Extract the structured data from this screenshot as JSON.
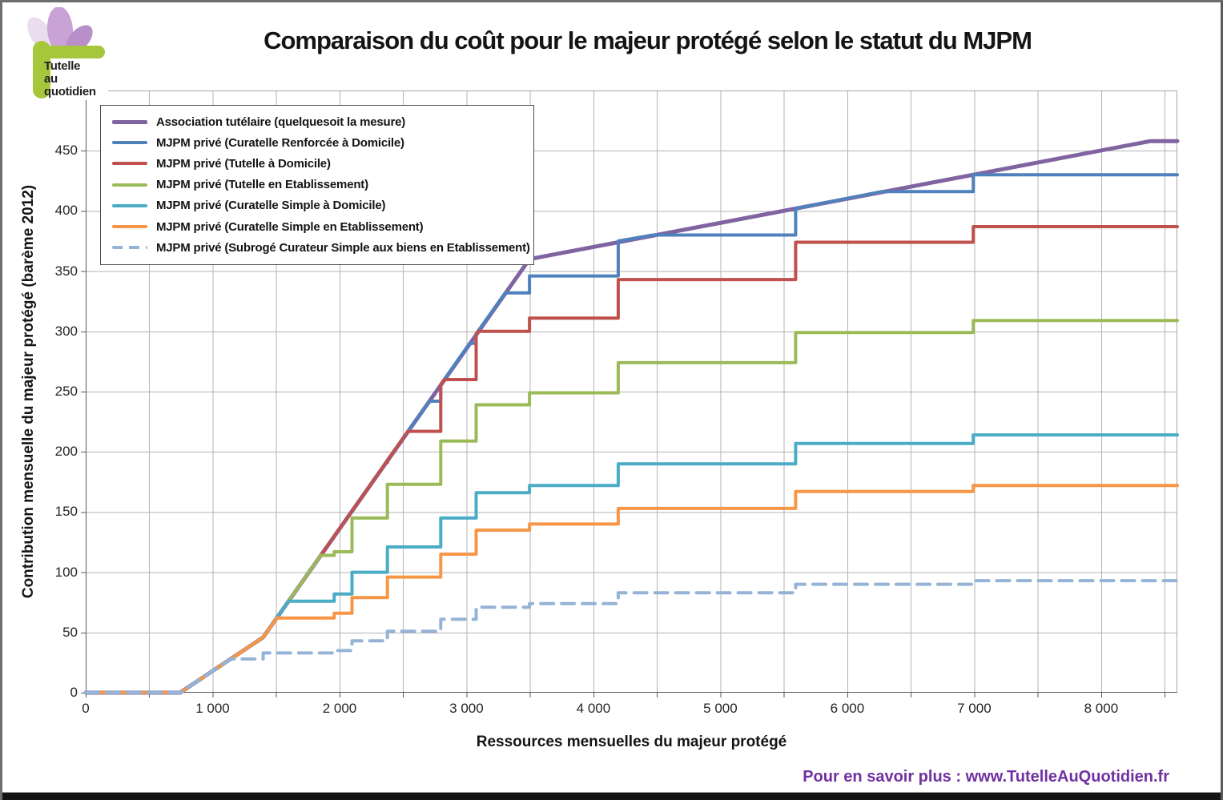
{
  "header": {
    "title": "Comparaison du coût pour le majeur protégé selon le statut du MJPM"
  },
  "logo": {
    "lines": [
      "Tutelle",
      "au",
      "quotidien"
    ],
    "green": "#A6C63B",
    "petal_light": "#EBDDF0",
    "petal_mid": "#C9A3D6",
    "petal_dark": "#B98FC9"
  },
  "footer": {
    "text": "Pour en savoir plus : www.TutelleAuQuotidien.fr",
    "color": "#7030A0"
  },
  "chart_data": {
    "type": "line",
    "title": "Comparaison du coût pour le majeur protégé selon le statut du MJPM",
    "xlabel": "Ressources mensuelles du majeur protégé",
    "ylabel": "Contribution mensuelle du majeur protégé (barème 2012)",
    "xlim": [
      0,
      8600
    ],
    "ylim": [
      0,
      500
    ],
    "x_grid_step": 500,
    "y_grid_step": 50,
    "grid_color": "#B3B3B3",
    "axis_color": "#595959",
    "legend_position": "top-left",
    "x_ticks": [
      {
        "value": 0,
        "label": "0"
      },
      {
        "value": 1000,
        "label": "1 000"
      },
      {
        "value": 2000,
        "label": "2 000"
      },
      {
        "value": 3000,
        "label": "3 000"
      },
      {
        "value": 4000,
        "label": "4 000"
      },
      {
        "value": 5000,
        "label": "5 000"
      },
      {
        "value": 6000,
        "label": "6 000"
      },
      {
        "value": 7000,
        "label": "7 000"
      },
      {
        "value": 8000,
        "label": "8 000"
      }
    ],
    "y_ticks": [
      {
        "value": 0,
        "label": "0"
      },
      {
        "value": 50,
        "label": "50"
      },
      {
        "value": 100,
        "label": "100"
      },
      {
        "value": 150,
        "label": "150"
      },
      {
        "value": 200,
        "label": "200"
      },
      {
        "value": 250,
        "label": "250"
      },
      {
        "value": 300,
        "label": "300"
      },
      {
        "value": 350,
        "label": "350"
      },
      {
        "value": 400,
        "label": "400"
      },
      {
        "value": 450,
        "label": "450"
      }
    ],
    "step_boundaries": [
      743,
      1398,
      1958,
      2098,
      2377,
      2797,
      3076,
      3496,
      4195,
      5593,
      6992,
      8390
    ],
    "series": [
      {
        "name": "Association tutélaire (quelquesoit la mesure)",
        "color": "#8064A2",
        "width": 5,
        "dash": null,
        "points": [
          [
            0,
            0
          ],
          [
            743,
            0
          ],
          [
            1398,
            46
          ],
          [
            3496,
            360
          ],
          [
            8388,
            458
          ],
          [
            8600,
            458
          ]
        ]
      },
      {
        "name": "MJPM privé (Curatelle Renforcée à Domicile)",
        "color": "#4F81BD",
        "width": 4,
        "dash": null,
        "points": [
          [
            0,
            0
          ],
          [
            743,
            0
          ],
          [
            1398,
            46
          ],
          [
            2706,
            242
          ],
          [
            2797,
            242
          ],
          [
            2797,
            256
          ],
          [
            3025,
            290
          ],
          [
            3076,
            290
          ],
          [
            3076,
            298
          ],
          [
            3305,
            332
          ],
          [
            3496,
            332
          ],
          [
            3496,
            346
          ],
          [
            4195,
            346
          ],
          [
            4195,
            375
          ],
          [
            4468,
            380
          ],
          [
            5593,
            380
          ],
          [
            5593,
            402
          ],
          [
            6268,
            416
          ],
          [
            6992,
            416
          ],
          [
            6992,
            430
          ],
          [
            8600,
            430
          ]
        ]
      },
      {
        "name": "MJPM privé (Tutelle à Domicile)",
        "color": "#C0504D",
        "width": 4,
        "dash": null,
        "points": [
          [
            0,
            0
          ],
          [
            743,
            0
          ],
          [
            1398,
            46
          ],
          [
            2366,
            191
          ],
          [
            2377,
            191
          ],
          [
            2377,
            193
          ],
          [
            2539,
            217
          ],
          [
            2797,
            217
          ],
          [
            2797,
            256
          ],
          [
            2826,
            260
          ],
          [
            3076,
            260
          ],
          [
            3076,
            298
          ],
          [
            3093,
            300
          ],
          [
            3496,
            300
          ],
          [
            3496,
            311
          ],
          [
            4195,
            311
          ],
          [
            4195,
            343
          ],
          [
            5593,
            343
          ],
          [
            5593,
            374
          ],
          [
            6992,
            374
          ],
          [
            6992,
            387
          ],
          [
            8600,
            387
          ]
        ]
      },
      {
        "name": "MJPM privé (Tutelle en Etablissement)",
        "color": "#9BBB59",
        "width": 4,
        "dash": null,
        "points": [
          [
            0,
            0
          ],
          [
            743,
            0
          ],
          [
            1398,
            46
          ],
          [
            1852,
            114
          ],
          [
            1958,
            114
          ],
          [
            1958,
            117
          ],
          [
            2098,
            117
          ],
          [
            2098,
            145
          ],
          [
            2377,
            145
          ],
          [
            2377,
            173
          ],
          [
            2797,
            173
          ],
          [
            2797,
            209
          ],
          [
            3076,
            209
          ],
          [
            3076,
            239
          ],
          [
            3496,
            239
          ],
          [
            3496,
            249
          ],
          [
            4195,
            249
          ],
          [
            4195,
            274
          ],
          [
            5593,
            274
          ],
          [
            5593,
            299
          ],
          [
            6992,
            299
          ],
          [
            6992,
            309
          ],
          [
            8600,
            309
          ]
        ]
      },
      {
        "name": "MJPM privé (Curatelle Simple à Domicile)",
        "color": "#4BACC6",
        "width": 4,
        "dash": null,
        "points": [
          [
            0,
            0
          ],
          [
            743,
            0
          ],
          [
            1398,
            46
          ],
          [
            1599,
            76
          ],
          [
            1958,
            76
          ],
          [
            1958,
            82
          ],
          [
            2098,
            82
          ],
          [
            2098,
            100
          ],
          [
            2377,
            100
          ],
          [
            2377,
            121
          ],
          [
            2797,
            121
          ],
          [
            2797,
            145
          ],
          [
            3076,
            145
          ],
          [
            3076,
            166
          ],
          [
            3496,
            166
          ],
          [
            3496,
            172
          ],
          [
            4195,
            172
          ],
          [
            4195,
            190
          ],
          [
            5593,
            190
          ],
          [
            5593,
            207
          ],
          [
            6992,
            207
          ],
          [
            6992,
            214
          ],
          [
            8600,
            214
          ]
        ]
      },
      {
        "name": "MJPM privé (Curatelle Simple en Etablissement)",
        "color": "#F79646",
        "width": 4,
        "dash": null,
        "points": [
          [
            0,
            0
          ],
          [
            743,
            0
          ],
          [
            1398,
            46
          ],
          [
            1506,
            62
          ],
          [
            1958,
            62
          ],
          [
            1958,
            66
          ],
          [
            2098,
            66
          ],
          [
            2098,
            79
          ],
          [
            2377,
            79
          ],
          [
            2377,
            96
          ],
          [
            2797,
            96
          ],
          [
            2797,
            115
          ],
          [
            3076,
            115
          ],
          [
            3076,
            135
          ],
          [
            3496,
            135
          ],
          [
            3496,
            140
          ],
          [
            4195,
            140
          ],
          [
            4195,
            153
          ],
          [
            5593,
            153
          ],
          [
            5593,
            167
          ],
          [
            6992,
            167
          ],
          [
            6992,
            172
          ],
          [
            8600,
            172
          ]
        ]
      },
      {
        "name": "MJPM privé (Subrogé Curateur Simple aux biens en Etablissement)",
        "color": "#95B3D7",
        "width": 4,
        "dash": [
          16,
          10
        ],
        "points": [
          [
            0,
            0
          ],
          [
            743,
            0
          ],
          [
            1143,
            28
          ],
          [
            1398,
            28
          ],
          [
            1398,
            33
          ],
          [
            1958,
            33
          ],
          [
            1958,
            35
          ],
          [
            2098,
            35
          ],
          [
            2098,
            43
          ],
          [
            2377,
            43
          ],
          [
            2377,
            51
          ],
          [
            2797,
            51
          ],
          [
            2797,
            61
          ],
          [
            3076,
            61
          ],
          [
            3076,
            71
          ],
          [
            3496,
            71
          ],
          [
            3496,
            74
          ],
          [
            4195,
            74
          ],
          [
            4195,
            83
          ],
          [
            5593,
            83
          ],
          [
            5593,
            90
          ],
          [
            6992,
            90
          ],
          [
            6992,
            93
          ],
          [
            8600,
            93
          ]
        ]
      }
    ]
  }
}
